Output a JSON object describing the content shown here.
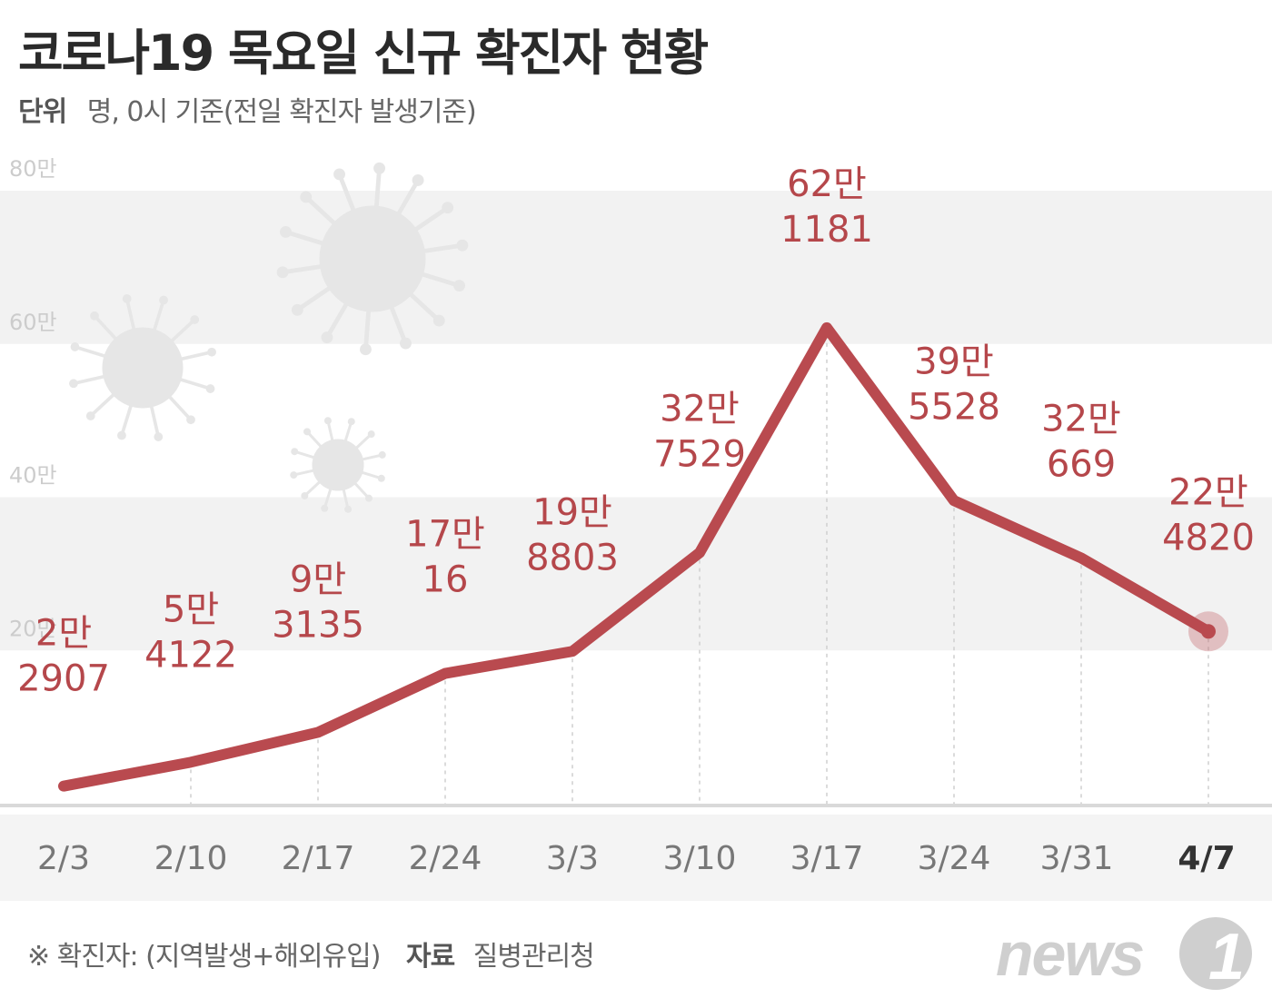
{
  "header": {
    "title": "코로나19 목요일 신규 확진자 현황",
    "unit_key": "단위",
    "unit_text": "명, 0시 기준(전일 확진자 발생기준)"
  },
  "footer": {
    "note": "※ 확진자: (지역발생+해외유입)",
    "source_key": "자료",
    "source": "질병관리청"
  },
  "logo": {
    "text": "news1",
    "color": "#cfcfcf"
  },
  "colors": {
    "line": "#b94a4f",
    "label": "#b5474b",
    "band": "#f2f2f2",
    "axis_band": "#f4f4f4",
    "baseline": "#d9d9d9",
    "tick_label": "#cccccc",
    "x_label": "#777777",
    "x_label_last": "#333333",
    "virus": "#e6e6e6"
  },
  "chart_data": {
    "type": "line",
    "title": "",
    "xlabel": "",
    "ylabel": "",
    "ylim": [
      0,
      800000
    ],
    "y_ticks": [
      {
        "value": 200000,
        "label": "20만"
      },
      {
        "value": 400000,
        "label": "40만"
      },
      {
        "value": 600000,
        "label": "60만"
      },
      {
        "value": 800000,
        "label": "80만"
      }
    ],
    "categories": [
      "2/3",
      "2/10",
      "2/17",
      "2/24",
      "3/3",
      "3/10",
      "3/17",
      "3/24",
      "3/31",
      "4/7"
    ],
    "values": [
      22907,
      54122,
      93135,
      170016,
      198803,
      327529,
      621181,
      395528,
      320669,
      224820
    ],
    "data_labels": [
      [
        "2만",
        "2907"
      ],
      [
        "5만",
        "4122"
      ],
      [
        "9만",
        "3135"
      ],
      [
        "17만",
        "16"
      ],
      [
        "19만",
        "8803"
      ],
      [
        "32만",
        "7529"
      ],
      [
        "62만",
        "1181"
      ],
      [
        "39만",
        "5528"
      ],
      [
        "32만",
        "669"
      ],
      [
        "22만",
        "4820"
      ]
    ],
    "highlight_last": true,
    "grid": "alternating bands"
  }
}
